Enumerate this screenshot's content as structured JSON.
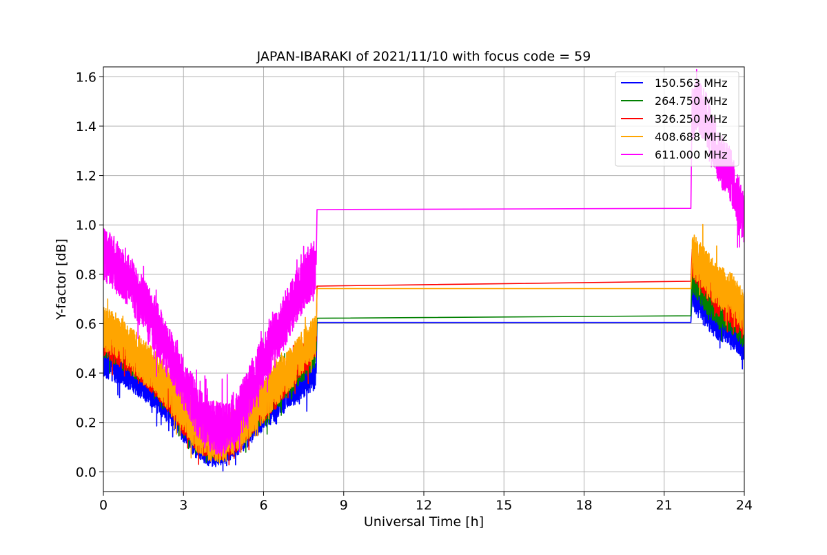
{
  "chart_data": {
    "type": "line",
    "title": "JAPAN-IBARAKI of 2021/11/10 with focus code = 59",
    "xlabel": "Universal Time [h]",
    "ylabel": "Y-factor [dB]",
    "xlim": [
      0,
      24
    ],
    "ylim": [
      -0.08,
      1.64
    ],
    "xticks": [
      0,
      3,
      6,
      9,
      12,
      15,
      18,
      21,
      24
    ],
    "xtick_labels": [
      "0",
      "3",
      "6",
      "9",
      "12",
      "15",
      "18",
      "21",
      "24"
    ],
    "yticks": [
      0.0,
      0.2,
      0.4,
      0.6,
      0.8,
      1.0,
      1.2,
      1.4,
      1.6
    ],
    "ytick_labels": [
      "0.0",
      "0.2",
      "0.4",
      "0.6",
      "0.8",
      "1.0",
      "1.2",
      "1.4",
      "1.6"
    ],
    "grid": true,
    "legend_position": "top-right",
    "series": [
      {
        "name": "150.563 MHz",
        "color": "#0000ff",
        "noise_amplitude": 0.07,
        "x": [
          0,
          0.5,
          1,
          1.5,
          2,
          2.5,
          3,
          3.5,
          4,
          4.5,
          5,
          5.5,
          6,
          6.5,
          7,
          7.5,
          7.95,
          8.0,
          22.0,
          22.05,
          22.5,
          23,
          23.5,
          24
        ],
        "y": [
          0.45,
          0.43,
          0.4,
          0.36,
          0.31,
          0.26,
          0.19,
          0.12,
          0.09,
          0.1,
          0.13,
          0.18,
          0.24,
          0.28,
          0.33,
          0.37,
          0.4,
          0.605,
          0.605,
          0.72,
          0.66,
          0.6,
          0.58,
          0.52
        ]
      },
      {
        "name": "264.750 MHz",
        "color": "#008000",
        "noise_amplitude": 0.07,
        "x": [
          0,
          0.5,
          1,
          1.5,
          2,
          2.5,
          3,
          3.5,
          4,
          4.5,
          5,
          5.5,
          6,
          6.5,
          7,
          7.5,
          7.95,
          8.0,
          22.0,
          22.05,
          22.5,
          23,
          23.5,
          24
        ],
        "y": [
          0.52,
          0.5,
          0.46,
          0.42,
          0.37,
          0.3,
          0.23,
          0.15,
          0.12,
          0.12,
          0.16,
          0.21,
          0.27,
          0.32,
          0.38,
          0.44,
          0.49,
          0.622,
          0.632,
          0.8,
          0.72,
          0.66,
          0.63,
          0.57
        ]
      },
      {
        "name": "326.250 MHz",
        "color": "#ff0000",
        "noise_amplitude": 0.07,
        "x": [
          0,
          0.5,
          1,
          1.5,
          2,
          2.5,
          3,
          3.5,
          4,
          4.5,
          5,
          5.5,
          6,
          6.5,
          7,
          7.5,
          7.95,
          8.0,
          22.0,
          22.05,
          22.5,
          23,
          23.5,
          24
        ],
        "y": [
          0.53,
          0.5,
          0.47,
          0.42,
          0.37,
          0.3,
          0.22,
          0.15,
          0.12,
          0.12,
          0.15,
          0.21,
          0.27,
          0.33,
          0.4,
          0.46,
          0.53,
          0.752,
          0.772,
          0.85,
          0.78,
          0.7,
          0.66,
          0.6
        ]
      },
      {
        "name": "408.688 MHz",
        "color": "#ffa500",
        "noise_amplitude": 0.09,
        "x": [
          0,
          0.5,
          1,
          1.5,
          2,
          2.5,
          3,
          3.5,
          4,
          4.5,
          5,
          5.5,
          6,
          6.5,
          7,
          7.5,
          7.95,
          8.0,
          22.0,
          22.05,
          22.5,
          23,
          23.5,
          24
        ],
        "y": [
          0.58,
          0.55,
          0.5,
          0.45,
          0.4,
          0.33,
          0.25,
          0.17,
          0.13,
          0.13,
          0.17,
          0.23,
          0.29,
          0.36,
          0.42,
          0.49,
          0.55,
          0.742,
          0.742,
          0.88,
          0.82,
          0.75,
          0.72,
          0.64
        ]
      },
      {
        "name": "611.000 MHz",
        "color": "#ff00ff",
        "noise_amplitude": 0.11,
        "x": [
          0,
          0.5,
          1,
          1.5,
          2,
          2.5,
          3,
          3.5,
          4,
          4.5,
          5,
          5.5,
          6,
          6.5,
          7,
          7.5,
          7.95,
          8.0,
          22.0,
          22.05,
          22.3,
          22.7,
          23,
          23.5,
          24
        ],
        "y": [
          0.88,
          0.84,
          0.76,
          0.68,
          0.58,
          0.47,
          0.36,
          0.25,
          0.19,
          0.17,
          0.22,
          0.33,
          0.45,
          0.55,
          0.66,
          0.76,
          0.84,
          1.062,
          1.067,
          1.45,
          1.48,
          1.4,
          1.28,
          1.2,
          1.02
        ]
      }
    ]
  }
}
